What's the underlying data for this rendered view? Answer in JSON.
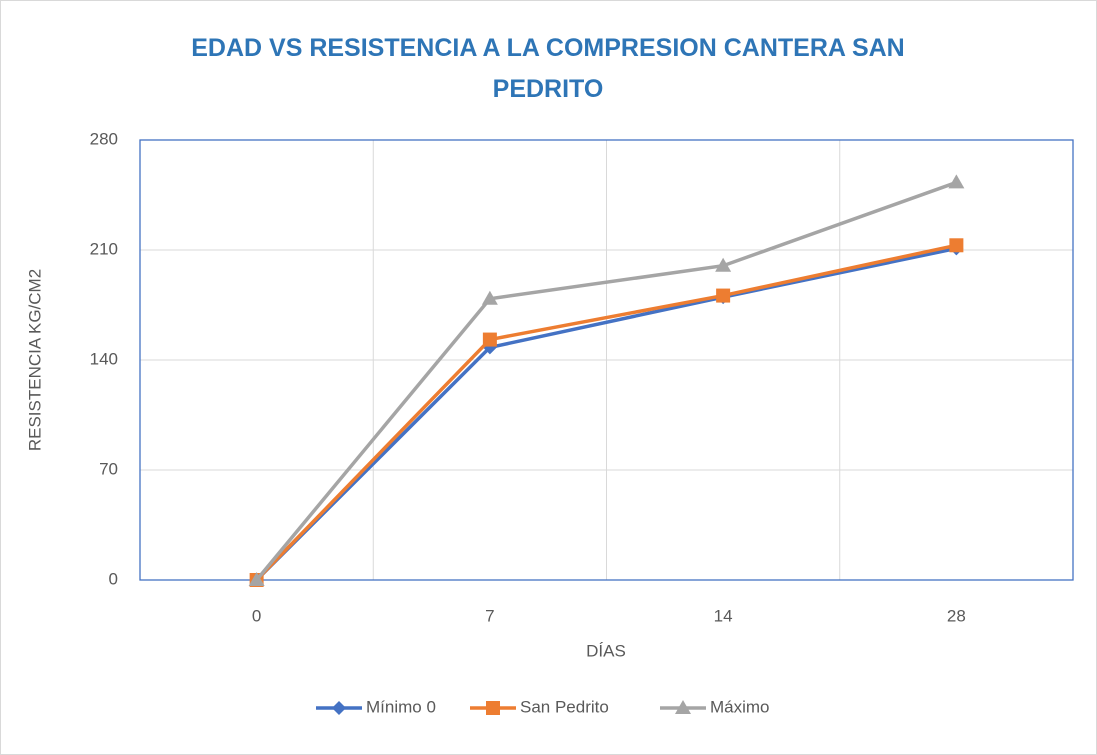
{
  "chart_data": {
    "type": "line",
    "title": "EDAD VS RESISTENCIA A LA COMPRESION CANTERA SAN PEDRITO",
    "x_label": "DÍAS",
    "y_label": "RESISTENCIA KG/CM2",
    "categories": [
      "0",
      "7",
      "14",
      "28"
    ],
    "series": [
      {
        "name": "Mínimo 0",
        "color": "#4472c4",
        "marker": "diamond",
        "values": [
          0,
          148,
          180,
          211
        ]
      },
      {
        "name": "San Pedrito",
        "color": "#ed7d31",
        "marker": "square",
        "values": [
          0,
          153,
          181,
          213
        ]
      },
      {
        "name": "Máximo",
        "color": "#a5a5a5",
        "marker": "triangle",
        "values": [
          0,
          179,
          200,
          253
        ]
      }
    ],
    "ylim": [
      0,
      280
    ],
    "yticks": [
      0,
      70,
      140,
      210,
      280
    ],
    "grid": true,
    "legend": "bottom"
  }
}
